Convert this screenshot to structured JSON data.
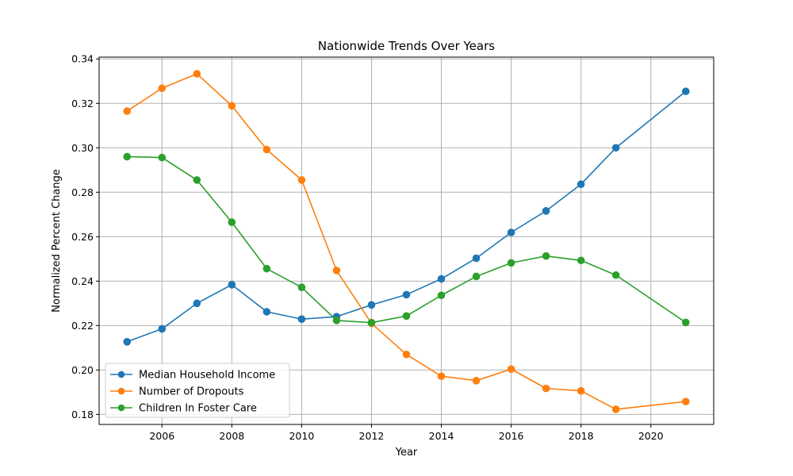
{
  "chart_data": {
    "type": "line",
    "title": "Nationwide Trends Over Years",
    "xlabel": "Year",
    "ylabel": "Normalized Percent Change",
    "x": [
      2005,
      2006,
      2007,
      2008,
      2009,
      2010,
      2011,
      2012,
      2013,
      2014,
      2015,
      2016,
      2017,
      2018,
      2019,
      2021
    ],
    "xlim": [
      2004.2,
      2021.8
    ],
    "ylim": [
      0.1755,
      0.3408
    ],
    "xticks": [
      2006,
      2008,
      2010,
      2012,
      2014,
      2016,
      2018,
      2020
    ],
    "yticks": [
      0.18,
      0.2,
      0.22,
      0.24,
      0.26,
      0.28,
      0.3,
      0.32,
      0.34
    ],
    "grid": true,
    "legend_position": "lower-left",
    "series": [
      {
        "name": "Median Household Income",
        "color": "#1f77b4",
        "values": [
          0.2127,
          0.2185,
          0.23,
          0.2384,
          0.2262,
          0.2229,
          0.224,
          0.2293,
          0.2339,
          0.241,
          0.2503,
          0.2619,
          0.2716,
          0.2836,
          0.3,
          0.3254
        ]
      },
      {
        "name": "Number of Dropouts",
        "color": "#ff7f0e",
        "values": [
          0.3165,
          0.3268,
          0.3333,
          0.3189,
          0.2992,
          0.2855,
          0.2448,
          0.221,
          0.207,
          0.1972,
          0.1952,
          0.2004,
          0.1917,
          0.1906,
          0.1823,
          0.1858
        ]
      },
      {
        "name": "Children In Foster Care",
        "color": "#2ca02c",
        "values": [
          0.296,
          0.2956,
          0.2855,
          0.2665,
          0.2456,
          0.2372,
          0.2223,
          0.2213,
          0.2243,
          0.2336,
          0.2421,
          0.2482,
          0.2513,
          0.2493,
          0.2427,
          0.2214
        ]
      }
    ]
  }
}
